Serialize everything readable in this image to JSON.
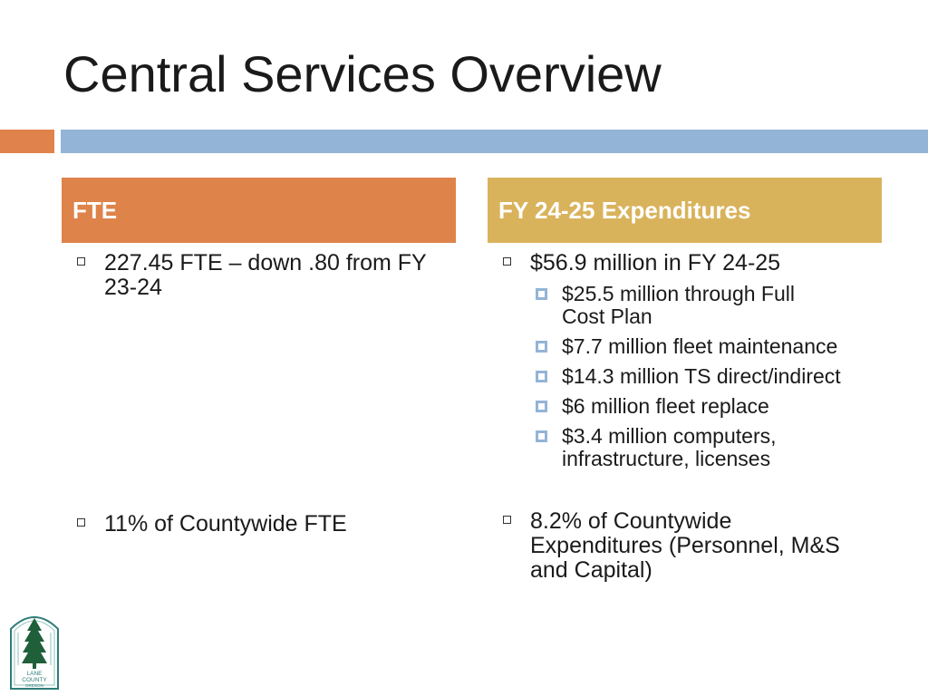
{
  "slide": {
    "title": "Central Services Overview"
  },
  "columns": {
    "fte": {
      "header": "FTE",
      "items": [
        "227.45 FTE – down .80 from FY 23-24",
        "11% of Countywide FTE"
      ]
    },
    "expenditures": {
      "header": "FY 24-25 Expenditures",
      "items": [
        "$56.9 million in FY 24-25",
        "8.2% of Countywide Expenditures (Personnel, M&S and Capital)"
      ],
      "subitems": [
        "$25.5 million through Full Cost Plan",
        "$7.7 million fleet maintenance",
        "$14.3 million TS direct/indirect",
        "$6 million fleet replace",
        "$3.4 million computers, infrastructure, licenses"
      ]
    }
  },
  "logo": {
    "line1": "LANE",
    "line2": "COUNTY",
    "line3": "OREGON",
    "icon": "tree-logo-icon"
  },
  "colors": {
    "accent_orange": "#de834a",
    "accent_gold": "#d9b35c",
    "accent_blue": "#93b4d6"
  }
}
